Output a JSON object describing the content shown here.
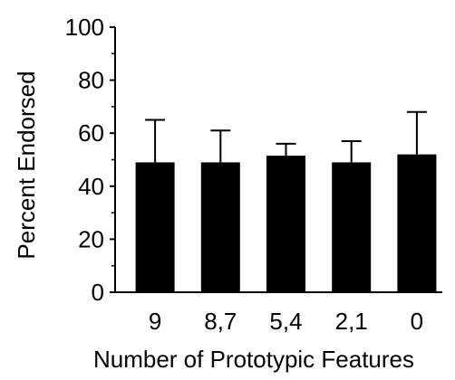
{
  "chart_data": {
    "type": "bar",
    "title": "",
    "xlabel": "Number of Prototypic Features",
    "ylabel": "Percent Endorsed",
    "categories": [
      "9",
      "8,7",
      "5,4",
      "2,1",
      "0"
    ],
    "values": [
      49,
      49,
      51.5,
      49,
      52
    ],
    "error_upper": [
      65,
      61,
      56,
      57,
      68
    ],
    "ylim": [
      0,
      100
    ],
    "yticks": [
      "0",
      "20",
      "40",
      "60",
      "80",
      "100"
    ],
    "minor_yticks": [
      10,
      30,
      50,
      70,
      90
    ],
    "grid": false,
    "bar_color": "#000000"
  }
}
